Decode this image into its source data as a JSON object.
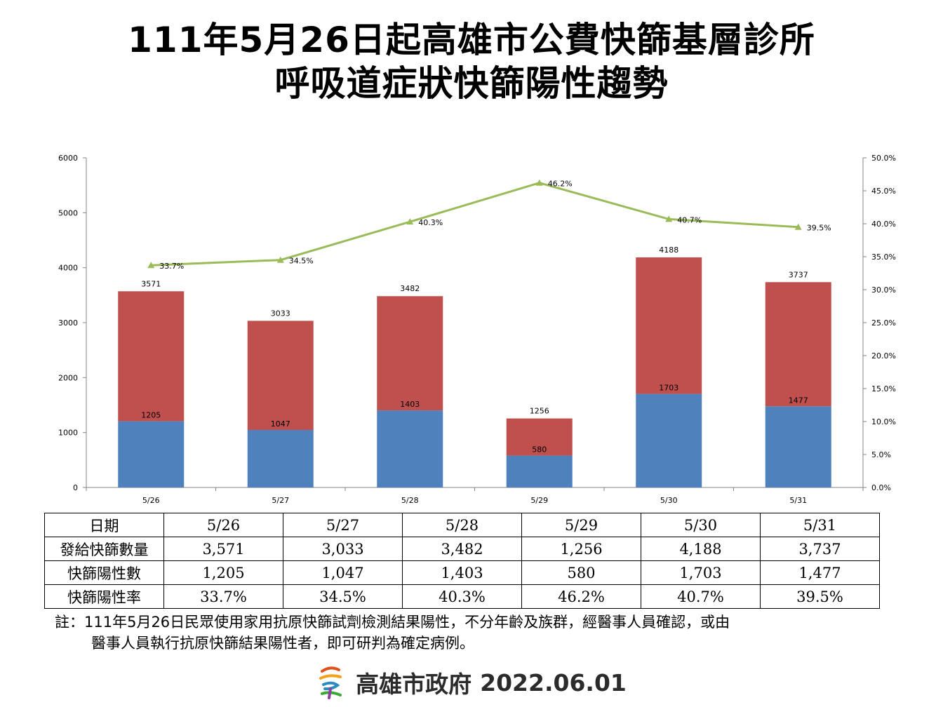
{
  "title_line1": "111年5月26日起高雄市公費快篩基層診所",
  "title_line2": "呼吸道症狀快篩陽性趨勢",
  "chart_data": {
    "type": "bar",
    "stacked": true,
    "categories": [
      "5/26",
      "5/27",
      "5/28",
      "5/29",
      "5/30",
      "5/31"
    ],
    "series": [
      {
        "kind": "bar",
        "values": [
          1205,
          1047,
          1403,
          580,
          1703,
          1477
        ],
        "color": "#4f81bd"
      },
      {
        "kind": "bar",
        "values": [
          2366,
          1986,
          2079,
          676,
          2485,
          2260
        ],
        "color": "#c0504d"
      },
      {
        "kind": "line",
        "axis": "right",
        "values": [
          33.7,
          34.5,
          40.3,
          46.2,
          40.7,
          39.5
        ],
        "color": "#9bbb59"
      }
    ],
    "total_labels": [
      "3571",
      "3033",
      "3482",
      "1256",
      "4188",
      "3737"
    ],
    "positive_labels": [
      "1205",
      "1047",
      "1403",
      "580",
      "1703",
      "1477"
    ],
    "rate_labels": [
      "33.7%",
      "34.5%",
      "40.3%",
      "46.2%",
      "40.7%",
      "39.5%"
    ],
    "ylim": [
      0,
      6000
    ],
    "yticks": [
      "0",
      "1000",
      "2000",
      "3000",
      "4000",
      "5000",
      "6000"
    ],
    "y2lim": [
      0,
      50
    ],
    "y2ticks": [
      "0.0%",
      "5.0%",
      "10.0%",
      "15.0%",
      "20.0%",
      "25.0%",
      "30.0%",
      "35.0%",
      "40.0%",
      "45.0%",
      "50.0%"
    ],
    "grid": false,
    "legend": "none"
  },
  "table": {
    "rows": [
      {
        "header": "日期",
        "cells": [
          "5/26",
          "5/27",
          "5/28",
          "5/29",
          "5/30",
          "5/31"
        ]
      },
      {
        "header": "發給快篩數量",
        "cells": [
          "3,571",
          "3,033",
          "3,482",
          "1,256",
          "4,188",
          "3,737"
        ]
      },
      {
        "header": "快篩陽性數",
        "cells": [
          "1,205",
          "1,047",
          "1,403",
          "580",
          "1,703",
          "1,477"
        ]
      },
      {
        "header": "快篩陽性率",
        "cells": [
          "33.7%",
          "34.5%",
          "40.3%",
          "46.2%",
          "40.7%",
          "39.5%"
        ]
      }
    ]
  },
  "note_line1": "註：111年5月26日民眾使用家用抗原快篩試劑檢測結果陽性，不分年齡及族群，經醫事人員確認，或由",
  "note_line2": "醫事人員執行抗原快篩結果陽性者，即可研判為確定病例。",
  "footer": {
    "org": "高雄市政府",
    "date": "2022.06.01",
    "logo_icon": "kaohsiung-city-logo-icon"
  }
}
